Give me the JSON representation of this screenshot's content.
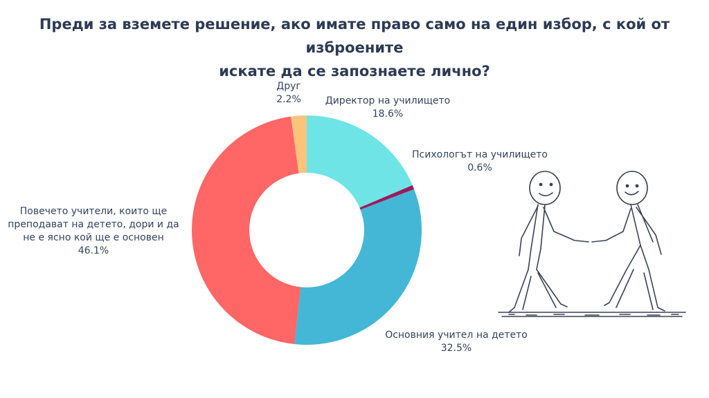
{
  "chart_data": {
    "type": "pie",
    "title_lines": [
      "Преди за вземете решение, ако имате право само на един избор, с кой от изброените",
      "искате да се запознаете лично?"
    ],
    "slices": [
      {
        "name": "Директор на училището",
        "value": 18.6,
        "value_label": "18.6%",
        "color": "#6ee4e6"
      },
      {
        "name": "Психологът на училището",
        "value": 0.6,
        "value_label": "0.6%",
        "color": "#9b1b5e"
      },
      {
        "name": "Основния учител на детето",
        "value": 32.5,
        "value_label": "32.5%",
        "color": "#43b7d5"
      },
      {
        "name": "Повечето учители, които ще преподават на детето, дори и да не е ясно кой ще е основен",
        "value": 46.1,
        "value_label": "46.1%",
        "color": "#ff6666"
      },
      {
        "name": "Друг",
        "value": 2.2,
        "value_label": "2.2%",
        "color": "#fcc37a"
      }
    ],
    "donut": true,
    "legend": "none"
  }
}
